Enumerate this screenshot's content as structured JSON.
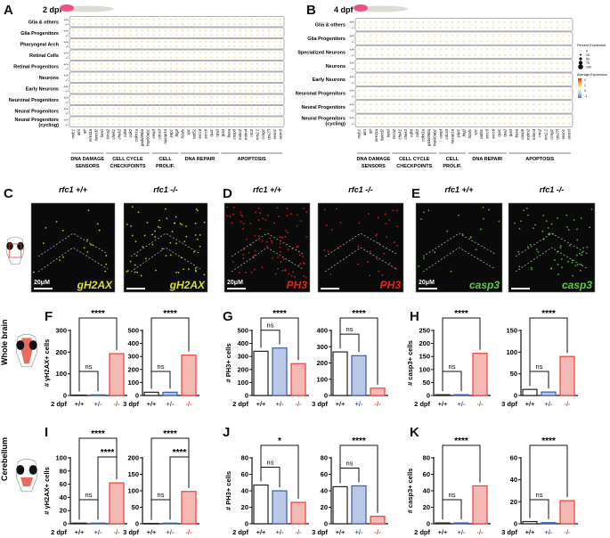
{
  "panels": {
    "A": {
      "letter": "A",
      "stage": "2 dpf",
      "groups": [
        "Glia & others",
        "Glia Progenitors",
        "Pharyngeal Arch",
        "Retinal Cells",
        "Retinal Progenitors",
        "Neurons",
        "Early Neurons",
        "Neuronal Progenitors",
        "Neural Progenitors",
        "Neural Progenitors\n(cycling)"
      ]
    },
    "B": {
      "letter": "B",
      "stage": "4 dpf",
      "groups": [
        "Glia & others",
        "Glia Progenitors",
        "Specialized Neurons",
        "Neurons",
        "Early Neurons",
        "Neuronal Progenitors",
        "Neural Progenitors",
        "Neural Progenitors\n(cycling)"
      ],
      "legend": {
        "size_title": "Percent Expressed",
        "size_values": [
          "0",
          "25",
          "50",
          "75",
          "100"
        ],
        "color_title": "Average Expression",
        "color_values": [
          "2",
          "1",
          "0",
          "-1"
        ],
        "color_scale": [
          "#d7301f",
          "#fdae61",
          "#ffffbf",
          "#abd9e9",
          "#4575b4"
        ]
      }
    },
    "genotypes": [
      "+/+",
      "-/-"
    ],
    "genes": [
      "mdc1",
      "atm",
      "atr",
      "mre11a",
      "fancd2",
      "fancl",
      "brca2",
      "chek1",
      "chek2",
      "cdk6",
      "cdk2",
      "cdkn1a",
      "gadd45ba",
      "hsp90ab1",
      "cenpf",
      "cdca3",
      "nusap1a",
      "yap1",
      "btg2",
      "h2afx",
      "xpc",
      "rad51",
      "ercc5",
      "ercc6",
      "rpa1",
      "rpa2",
      "tp53",
      "baxa",
      "casp8",
      "mdm2",
      "mdm4",
      "rrm2",
      "rrm2.1",
      "ccng1",
      "rps27l",
      "sesn1",
      "sesn3"
    ],
    "gene_categories": [
      {
        "label": [
          "DNA DAMAGE",
          "SENSORS"
        ],
        "from": 0,
        "to": 5
      },
      {
        "label": [
          "CELL CYCLE",
          "CHECKPOINTS"
        ],
        "from": 6,
        "to": 13
      },
      {
        "label": [
          "CELL",
          "PROLIF."
        ],
        "from": 14,
        "to": 18
      },
      {
        "label": [
          "DNA REPAIR",
          ""
        ],
        "from": 19,
        "to": 25
      },
      {
        "label": [
          "APOPTOSIS",
          ""
        ],
        "from": 26,
        "to": 36
      }
    ]
  },
  "images": {
    "C": {
      "letter": "C",
      "left_title": "rfc1 +/+",
      "right_title": "rfc1 -/-",
      "stain": "gH2AX",
      "color": "#d9e21a",
      "scale": "20μM"
    },
    "D": {
      "letter": "D",
      "left_title": "rfc1 +/+",
      "right_title": "rfc1 -/-",
      "stain": "PH3",
      "color": "#e8231c",
      "scale": "20μM"
    },
    "E": {
      "letter": "E",
      "left_title": "rfc1 +/+",
      "right_title": "rfc1 -/-",
      "stain": "casp3",
      "color": "#5ccc3c",
      "scale": "20μM"
    }
  },
  "row_labels": {
    "whole_brain": "Whole brain",
    "cerebellum": "Cerebellum"
  },
  "colors": {
    "wt": "#222222",
    "het": "#3b5ba9",
    "mut": "#e8403a",
    "het_fill": "#b9c8e6",
    "mut_fill": "#f5b9b5"
  },
  "chart_data": [
    {
      "panel": "F",
      "type": "bar",
      "stage": "2 dpf",
      "ylabel": "# γH2AX+ cells",
      "categories": [
        "+/+",
        "+/-",
        "-/-"
      ],
      "values": [
        2,
        3,
        193
      ],
      "ylim": [
        0,
        300
      ],
      "yticks": [
        0,
        100,
        200,
        300
      ],
      "comparisons": [
        {
          "pair": [
            0,
            1
          ],
          "label": "ns"
        },
        {
          "pair": [
            0,
            2
          ],
          "label": "****"
        }
      ]
    },
    {
      "panel": "F",
      "type": "bar",
      "stage": "3 dpf",
      "ylabel": "",
      "categories": [
        "+/+",
        "+/-",
        "-/-"
      ],
      "values": [
        25,
        25,
        310
      ],
      "ylim": [
        0,
        500
      ],
      "yticks": [
        0,
        100,
        200,
        300,
        400,
        500
      ],
      "comparisons": [
        {
          "pair": [
            0,
            1
          ],
          "label": "ns"
        },
        {
          "pair": [
            0,
            2
          ],
          "label": "****"
        }
      ]
    },
    {
      "panel": "G",
      "type": "bar",
      "stage": "2 dpf",
      "ylabel": "# PH3+ cells",
      "categories": [
        "+/+",
        "+/-",
        "-/-"
      ],
      "values": [
        340,
        365,
        245
      ],
      "ylim": [
        0,
        500
      ],
      "yticks": [
        0,
        100,
        200,
        300,
        400,
        500
      ],
      "comparisons": [
        {
          "pair": [
            0,
            1
          ],
          "label": "ns"
        },
        {
          "pair": [
            0,
            2
          ],
          "label": "****"
        }
      ]
    },
    {
      "panel": "G",
      "type": "bar",
      "stage": "3 dpf",
      "ylabel": "",
      "categories": [
        "+/+",
        "+/-",
        "-/-"
      ],
      "values": [
        268,
        245,
        45
      ],
      "ylim": [
        0,
        400
      ],
      "yticks": [
        0,
        100,
        200,
        300,
        400
      ],
      "comparisons": [
        {
          "pair": [
            0,
            1
          ],
          "label": "ns"
        },
        {
          "pair": [
            0,
            2
          ],
          "label": "****"
        }
      ]
    },
    {
      "panel": "H",
      "type": "bar",
      "stage": "2 dpf",
      "ylabel": "# casp3+ cells",
      "categories": [
        "+/+",
        "+/-",
        "-/-"
      ],
      "values": [
        3,
        3,
        162
      ],
      "ylim": [
        0,
        250
      ],
      "yticks": [
        0,
        50,
        100,
        150,
        200,
        250
      ],
      "comparisons": [
        {
          "pair": [
            0,
            1
          ],
          "label": "ns"
        },
        {
          "pair": [
            0,
            2
          ],
          "label": "****"
        }
      ]
    },
    {
      "panel": "H",
      "type": "bar",
      "stage": "3 dpf",
      "ylabel": "",
      "categories": [
        "+/+",
        "+/-",
        "-/-"
      ],
      "values": [
        14,
        8,
        90
      ],
      "ylim": [
        0,
        150
      ],
      "yticks": [
        0,
        50,
        100,
        150
      ],
      "comparisons": [
        {
          "pair": [
            0,
            1
          ],
          "label": "ns"
        },
        {
          "pair": [
            0,
            2
          ],
          "label": "****"
        }
      ]
    },
    {
      "panel": "I",
      "type": "bar",
      "stage": "2 dpf",
      "ylabel": "# γH2AX+ cells",
      "categories": [
        "+/+",
        "+/-",
        "-/-"
      ],
      "values": [
        1,
        1,
        62
      ],
      "ylim": [
        0,
        100
      ],
      "yticks": [
        0,
        20,
        40,
        60,
        80,
        100
      ],
      "comparisons": [
        {
          "pair": [
            0,
            1
          ],
          "label": "ns"
        },
        {
          "pair": [
            1,
            2
          ],
          "label": "****"
        },
        {
          "pair": [
            0,
            2
          ],
          "label": "****"
        }
      ]
    },
    {
      "panel": "I",
      "type": "bar",
      "stage": "3 dpf",
      "ylabel": "",
      "categories": [
        "+/+",
        "+/-",
        "-/-"
      ],
      "values": [
        1,
        2,
        98
      ],
      "ylim": [
        0,
        200
      ],
      "yticks": [
        0,
        50,
        100,
        150,
        200
      ],
      "comparisons": [
        {
          "pair": [
            0,
            1
          ],
          "label": "ns"
        },
        {
          "pair": [
            1,
            2
          ],
          "label": "****"
        },
        {
          "pair": [
            0,
            2
          ],
          "label": "****"
        }
      ]
    },
    {
      "panel": "J",
      "type": "bar",
      "stage": "2 dpf",
      "ylabel": "# PH3+ cells",
      "categories": [
        "+/+",
        "+/-",
        "-/-"
      ],
      "values": [
        47,
        40,
        26
      ],
      "ylim": [
        0,
        80
      ],
      "yticks": [
        0,
        20,
        40,
        60,
        80
      ],
      "comparisons": [
        {
          "pair": [
            0,
            1
          ],
          "label": "ns"
        },
        {
          "pair": [
            0,
            2
          ],
          "label": "*"
        }
      ]
    },
    {
      "panel": "J",
      "type": "bar",
      "stage": "3 dpf",
      "ylabel": "",
      "categories": [
        "+/+",
        "+/-",
        "-/-"
      ],
      "values": [
        45,
        46,
        9
      ],
      "ylim": [
        0,
        80
      ],
      "yticks": [
        0,
        20,
        40,
        60,
        80
      ],
      "comparisons": [
        {
          "pair": [
            0,
            1
          ],
          "label": "ns"
        },
        {
          "pair": [
            0,
            2
          ],
          "label": "****"
        }
      ]
    },
    {
      "panel": "K",
      "type": "bar",
      "stage": "2 dpf",
      "ylabel": "# casp3+ cells",
      "categories": [
        "+/+",
        "+/-",
        "-/-"
      ],
      "values": [
        1,
        1,
        46
      ],
      "ylim": [
        0,
        80
      ],
      "yticks": [
        0,
        20,
        40,
        60,
        80
      ],
      "comparisons": [
        {
          "pair": [
            0,
            1
          ],
          "label": "ns"
        },
        {
          "pair": [
            0,
            2
          ],
          "label": "****"
        }
      ]
    },
    {
      "panel": "K",
      "type": "bar",
      "stage": "3 dpf",
      "ylabel": "",
      "categories": [
        "+/+",
        "+/-",
        "-/-"
      ],
      "values": [
        2,
        1,
        21
      ],
      "ylim": [
        0,
        60
      ],
      "yticks": [
        0,
        20,
        40,
        60
      ],
      "comparisons": [
        {
          "pair": [
            0,
            1
          ],
          "label": "ns"
        },
        {
          "pair": [
            0,
            2
          ],
          "label": "****"
        }
      ]
    }
  ]
}
